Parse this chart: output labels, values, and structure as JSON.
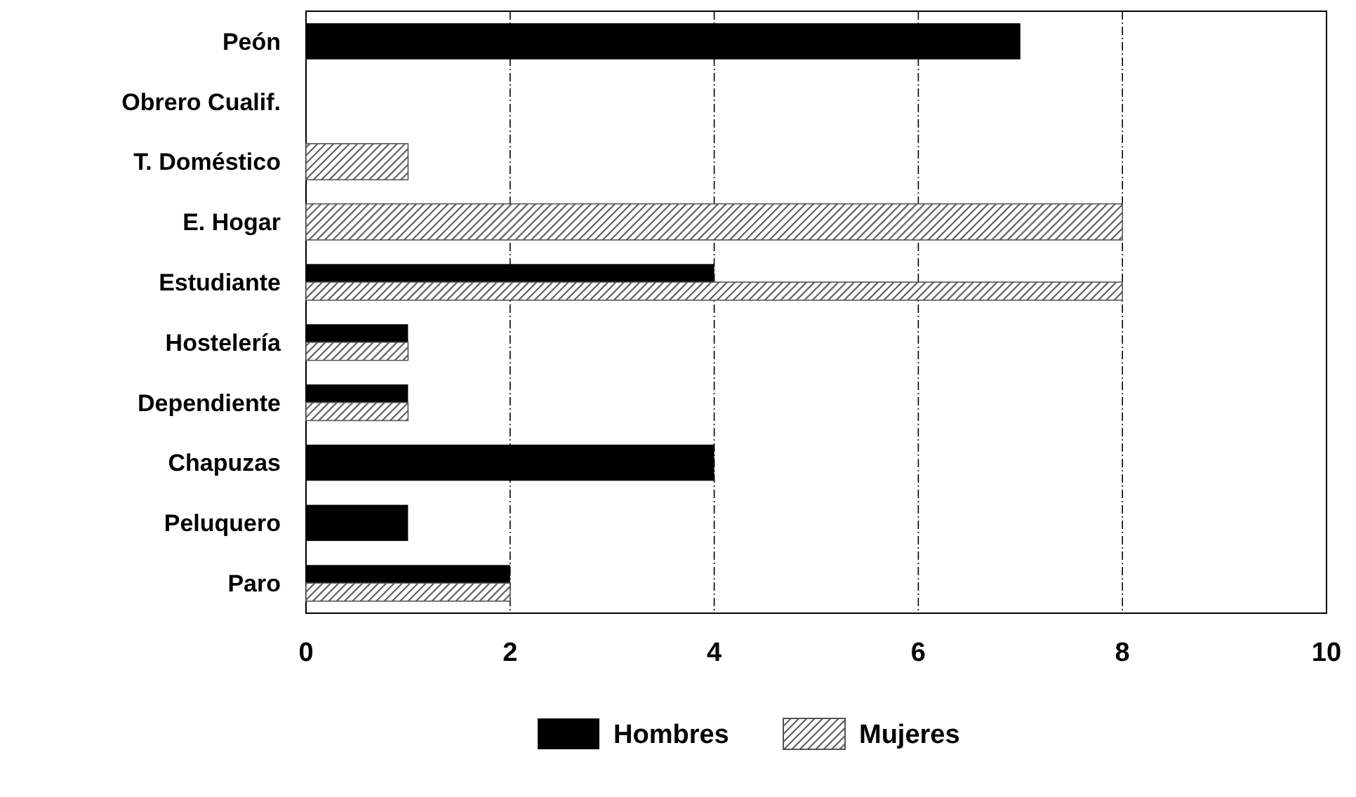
{
  "chart_data": {
    "type": "bar",
    "orientation": "horizontal",
    "categories": [
      "Peón",
      "Obrero Cualif.",
      "T. Doméstico",
      "E. Hogar",
      "Estudiante",
      "Hostelería",
      "Dependiente",
      "Chapuzas",
      "Peluquero",
      "Paro"
    ],
    "series": [
      {
        "name": "Hombres",
        "color": "#000000",
        "values": [
          7,
          null,
          null,
          null,
          4,
          1,
          1,
          4,
          1,
          2
        ]
      },
      {
        "name": "Mujeres",
        "color": "#555555",
        "values": [
          null,
          null,
          1,
          8,
          8,
          1,
          1,
          null,
          null,
          2
        ]
      }
    ],
    "xlim": [
      0,
      10
    ],
    "xticks": [
      0,
      2,
      4,
      6,
      8,
      10
    ],
    "grid": "x",
    "legend": "bottom"
  }
}
